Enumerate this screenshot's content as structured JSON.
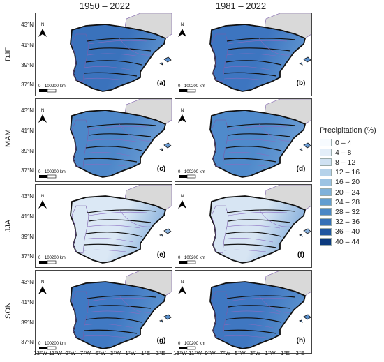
{
  "columns": [
    "1950 – 2022",
    "1981 – 2022"
  ],
  "rows": [
    "DJF",
    "MAM",
    "JJA",
    "SON"
  ],
  "lat_labels": [
    "43°N",
    "41°N",
    "39°N",
    "37°N"
  ],
  "lon_labels": [
    "13°W",
    "11°W",
    "9°W",
    "7°W",
    "5°W",
    "3°W",
    "1°W",
    "1°E",
    "3°E"
  ],
  "scalebar": {
    "zero": "0",
    "mid": "100",
    "end": "200 km"
  },
  "north_label": "N",
  "panel_labels": [
    "(a)",
    "(b)",
    "(c)",
    "(d)",
    "(e)",
    "(f)",
    "(g)",
    "(h)"
  ],
  "panel_fill": [
    "#3a72bc",
    "#3d75c0",
    "#4d87c9",
    "#4f8acb",
    "#dbe8f5",
    "#d7e5f3",
    "#4079c3",
    "#3f77c1"
  ],
  "panel_fill_east": [
    "#5a8fcd",
    "#5c92cf",
    "#6a9bd3",
    "#6b9cd4",
    "#8fb5df",
    "#8ab1dd",
    "#5b91ce",
    "#5a90cd"
  ],
  "legend": {
    "title": "Precipitation (%)",
    "items": [
      {
        "label": "0 – 4",
        "color": "#f7fbff"
      },
      {
        "label": "4 – 8",
        "color": "#e3eef9"
      },
      {
        "label": "8 – 12",
        "color": "#cfe1f2"
      },
      {
        "label": "12 – 16",
        "color": "#b5d2ea"
      },
      {
        "label": "16 – 20",
        "color": "#9cc3e3"
      },
      {
        "label": "20 – 24",
        "color": "#7fb1da"
      },
      {
        "label": "24 – 28",
        "color": "#629dd0"
      },
      {
        "label": "28 – 32",
        "color": "#4a87c5"
      },
      {
        "label": "32 – 36",
        "color": "#3570b6"
      },
      {
        "label": "36 – 40",
        "color": "#1f569f"
      },
      {
        "label": "40 – 44",
        "color": "#0b3a7e"
      }
    ]
  }
}
